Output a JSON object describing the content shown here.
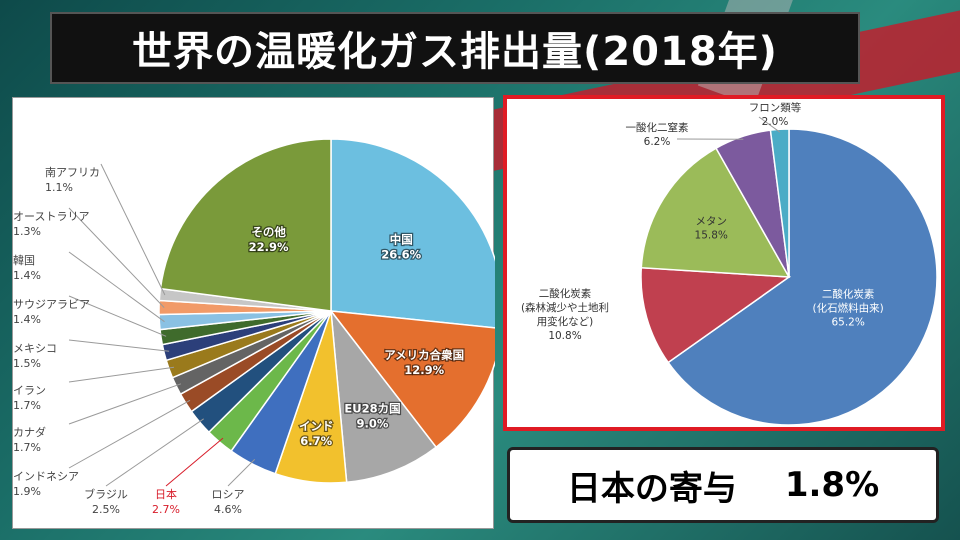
{
  "title": "世界の温暖化ガス排出量(2018年)",
  "result": {
    "label": "日本の寄与",
    "value": "1.8%"
  },
  "chart_data": [
    {
      "type": "pie",
      "units": "%",
      "slices": [
        {
          "label": "中国",
          "value": 26.6,
          "color": "#6cbfe0"
        },
        {
          "label": "アメリカ合衆国",
          "value": 12.9,
          "color": "#e46f2e"
        },
        {
          "label": "EU28カ国",
          "value": 9.0,
          "color": "#a7a7a7"
        },
        {
          "label": "インド",
          "value": 6.7,
          "color": "#f2c12d"
        },
        {
          "label": "ロシア",
          "value": 4.6,
          "color": "#3f6fbf"
        },
        {
          "label": "日本",
          "value": 2.7,
          "color": "#6cb84a",
          "highlight_color": "#d81c2a"
        },
        {
          "label": "ブラジル",
          "value": 2.5,
          "color": "#22507e"
        },
        {
          "label": "インドネシア",
          "value": 1.9,
          "color": "#9a4b26"
        },
        {
          "label": "カナダ",
          "value": 1.7,
          "color": "#646464"
        },
        {
          "label": "イラン",
          "value": 1.7,
          "color": "#9a7a1c"
        },
        {
          "label": "メキシコ",
          "value": 1.5,
          "color": "#2c3f7a"
        },
        {
          "label": "サウジアラビア",
          "value": 1.4,
          "color": "#3f6b2c"
        },
        {
          "label": "韓国",
          "value": 1.4,
          "color": "#8ac1e3"
        },
        {
          "label": "オーストラリア",
          "value": 1.3,
          "color": "#f19a68"
        },
        {
          "label": "南アフリカ",
          "value": 1.1,
          "color": "#c6c6c6"
        },
        {
          "label": "その他",
          "value": 22.9,
          "color": "#7a9a3a"
        }
      ]
    },
    {
      "type": "pie",
      "units": "%",
      "slices": [
        {
          "label": "二酸化炭素",
          "sublabel": "(化石燃料由来)",
          "value": 65.2,
          "color": "#4f80bd"
        },
        {
          "label": "二酸化炭素",
          "sublabel": "(森林減少や土地利用変化など)",
          "value": 10.8,
          "color": "#c0404f"
        },
        {
          "label": "メタン",
          "value": 15.8,
          "color": "#9bbb59"
        },
        {
          "label": "一酸化二窒素",
          "value": 6.2,
          "color": "#7c5a9e"
        },
        {
          "label": "フロン類等",
          "value": 2.0,
          "color": "#4bacc6"
        }
      ]
    }
  ]
}
